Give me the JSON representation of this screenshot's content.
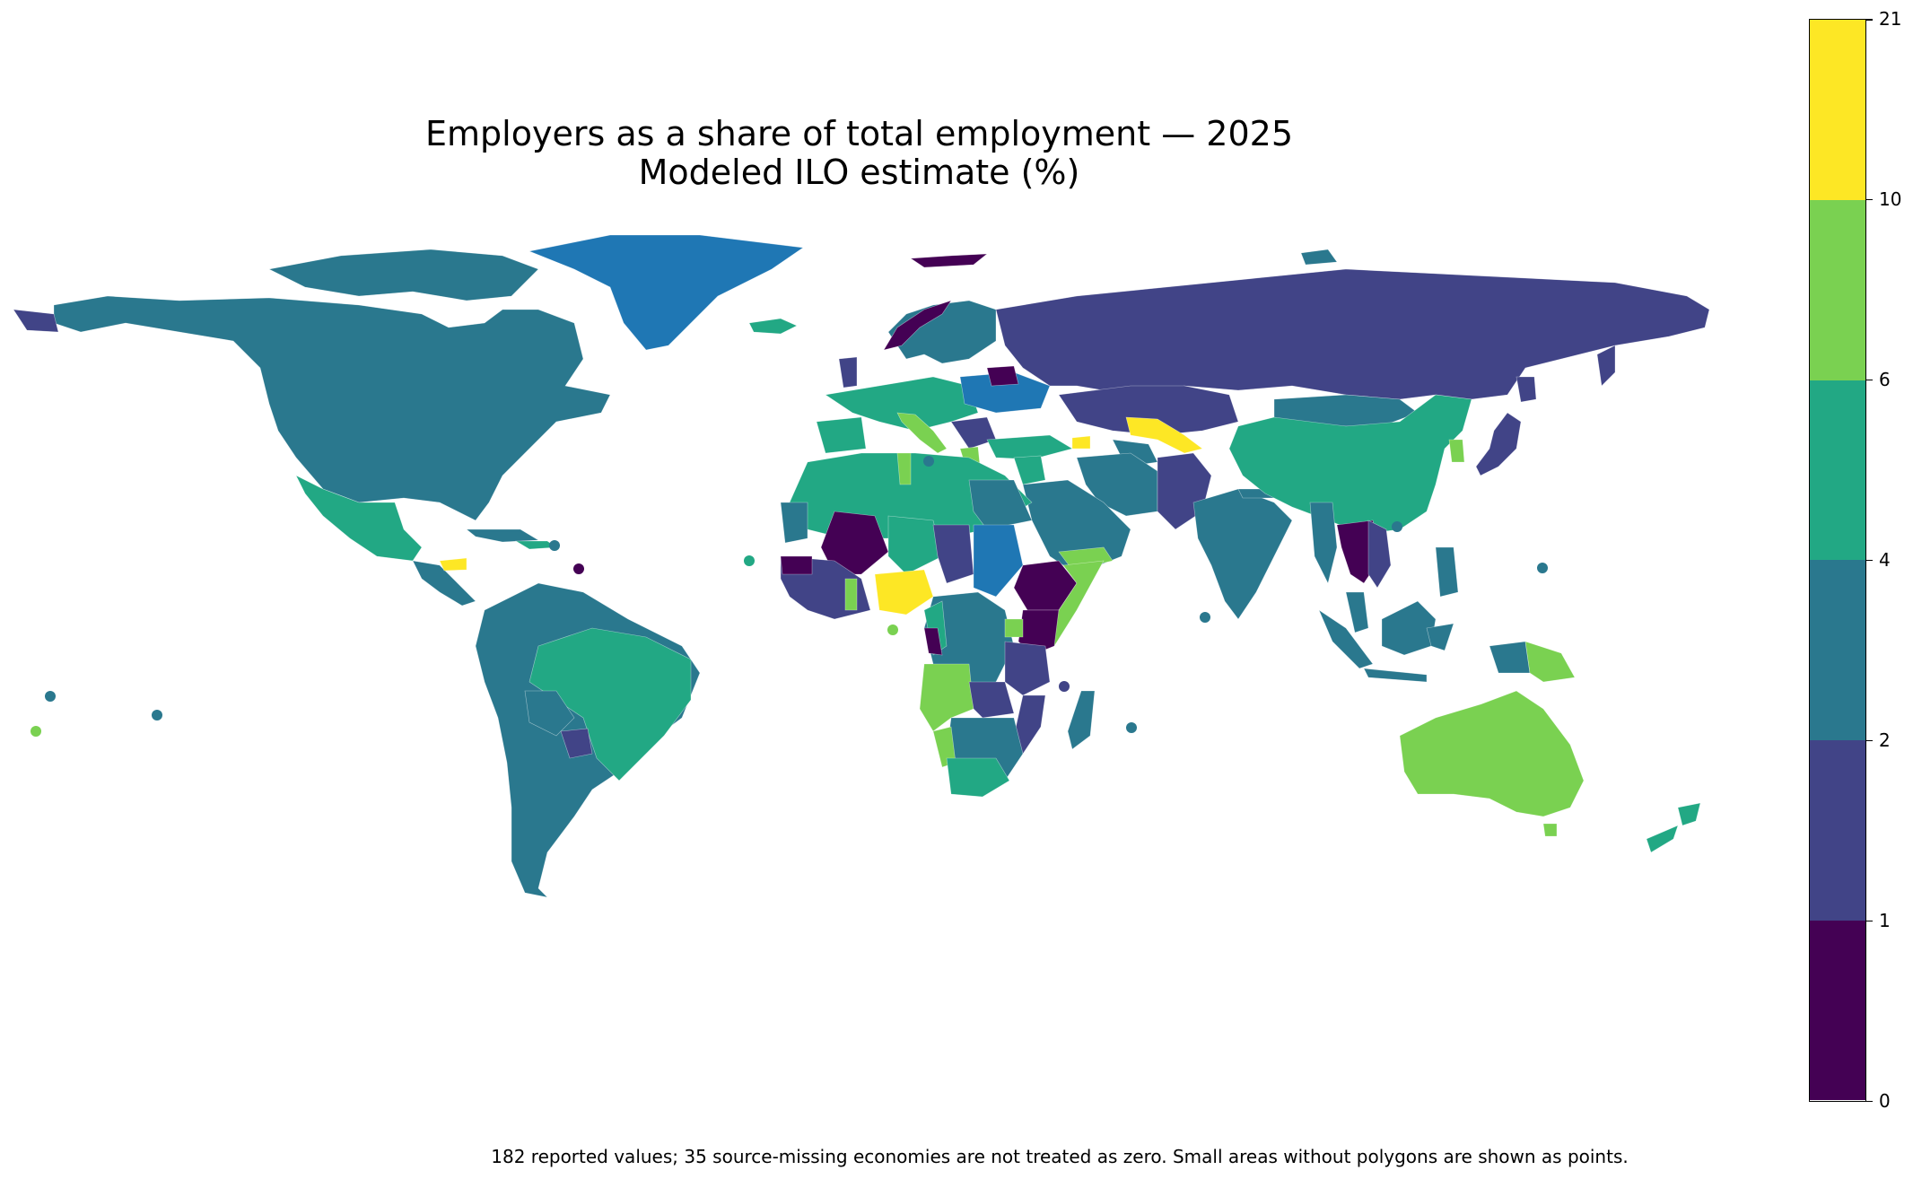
{
  "title": {
    "line1": "Employers as a share of total employment — 2025",
    "line2": "Modeled ILO estimate (%)"
  },
  "caption": "182 reported values; 35 source-missing economies are not treated as zero. Small areas without polygons are shown as points.",
  "colorbar": {
    "boundaries": [
      "0",
      "1",
      "2",
      "4",
      "6",
      "10",
      "21"
    ],
    "colors": [
      "#440154",
      "#414487",
      "#2a788e",
      "#22a884",
      "#7ad151",
      "#fde725"
    ]
  },
  "chart_data": {
    "type": "choropleth",
    "legend_placement": "right",
    "color_bins": [
      {
        "range": [
          0,
          1
        ],
        "color": "#440154"
      },
      {
        "range": [
          1,
          2
        ],
        "color": "#414487"
      },
      {
        "range": [
          2,
          4
        ],
        "color": "#2a788e"
      },
      {
        "range": [
          4,
          6
        ],
        "color": "#22a884"
      },
      {
        "range": [
          6,
          10
        ],
        "color": "#7ad151"
      },
      {
        "range": [
          10,
          21
        ],
        "color": "#fde725"
      }
    ],
    "no_data_color": "#1f77b4"
  }
}
